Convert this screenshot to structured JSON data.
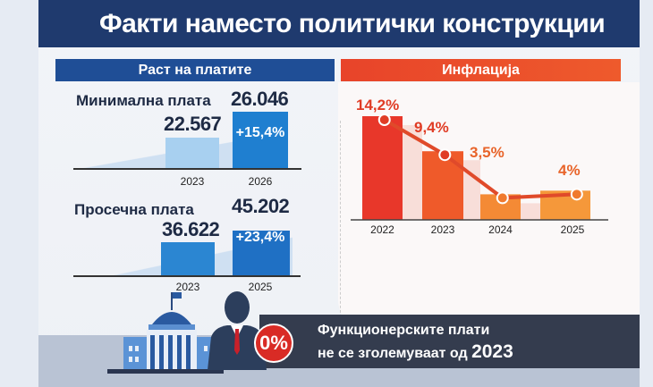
{
  "title": "Факти наместо политички конструкции",
  "wages": {
    "header": "Раст на платите",
    "minimum": {
      "label": "Минимална плата",
      "years": [
        "2023",
        "2026"
      ],
      "values_text": [
        "22.567",
        "26.046"
      ],
      "change": "+15,4%"
    },
    "average": {
      "label": "Просечна плата",
      "years": [
        "2023",
        "2025"
      ],
      "values_text": [
        "36.622",
        "45.202"
      ],
      "change": "+23,4%"
    }
  },
  "inflation": {
    "header": "Инфлација"
  },
  "bottom": {
    "line1": "Функционерските плати",
    "line2_prefix": "не се зголемуваат од ",
    "line2_year": "2023",
    "badge": "0%"
  },
  "colors": {
    "navy": "#1f3a6e",
    "blue": "#1f73c6",
    "orange": "#e84a2a"
  },
  "chart_data": [
    {
      "type": "bar",
      "title": "Минимална плата",
      "categories": [
        "2023",
        "2026"
      ],
      "values": [
        22567,
        26046
      ],
      "annotation": "+15,4%"
    },
    {
      "type": "bar",
      "title": "Просечна плата",
      "categories": [
        "2023",
        "2025"
      ],
      "values": [
        36622,
        45202
      ],
      "annotation": "+23,4%"
    },
    {
      "type": "bar",
      "title": "Инфлација",
      "categories": [
        "2022",
        "2023",
        "2024",
        "2025"
      ],
      "values": [
        14.2,
        9.4,
        3.5,
        4
      ],
      "labels": [
        "14,2%",
        "9,4%",
        "3,5%",
        "4%"
      ],
      "overlay": "line"
    }
  ]
}
